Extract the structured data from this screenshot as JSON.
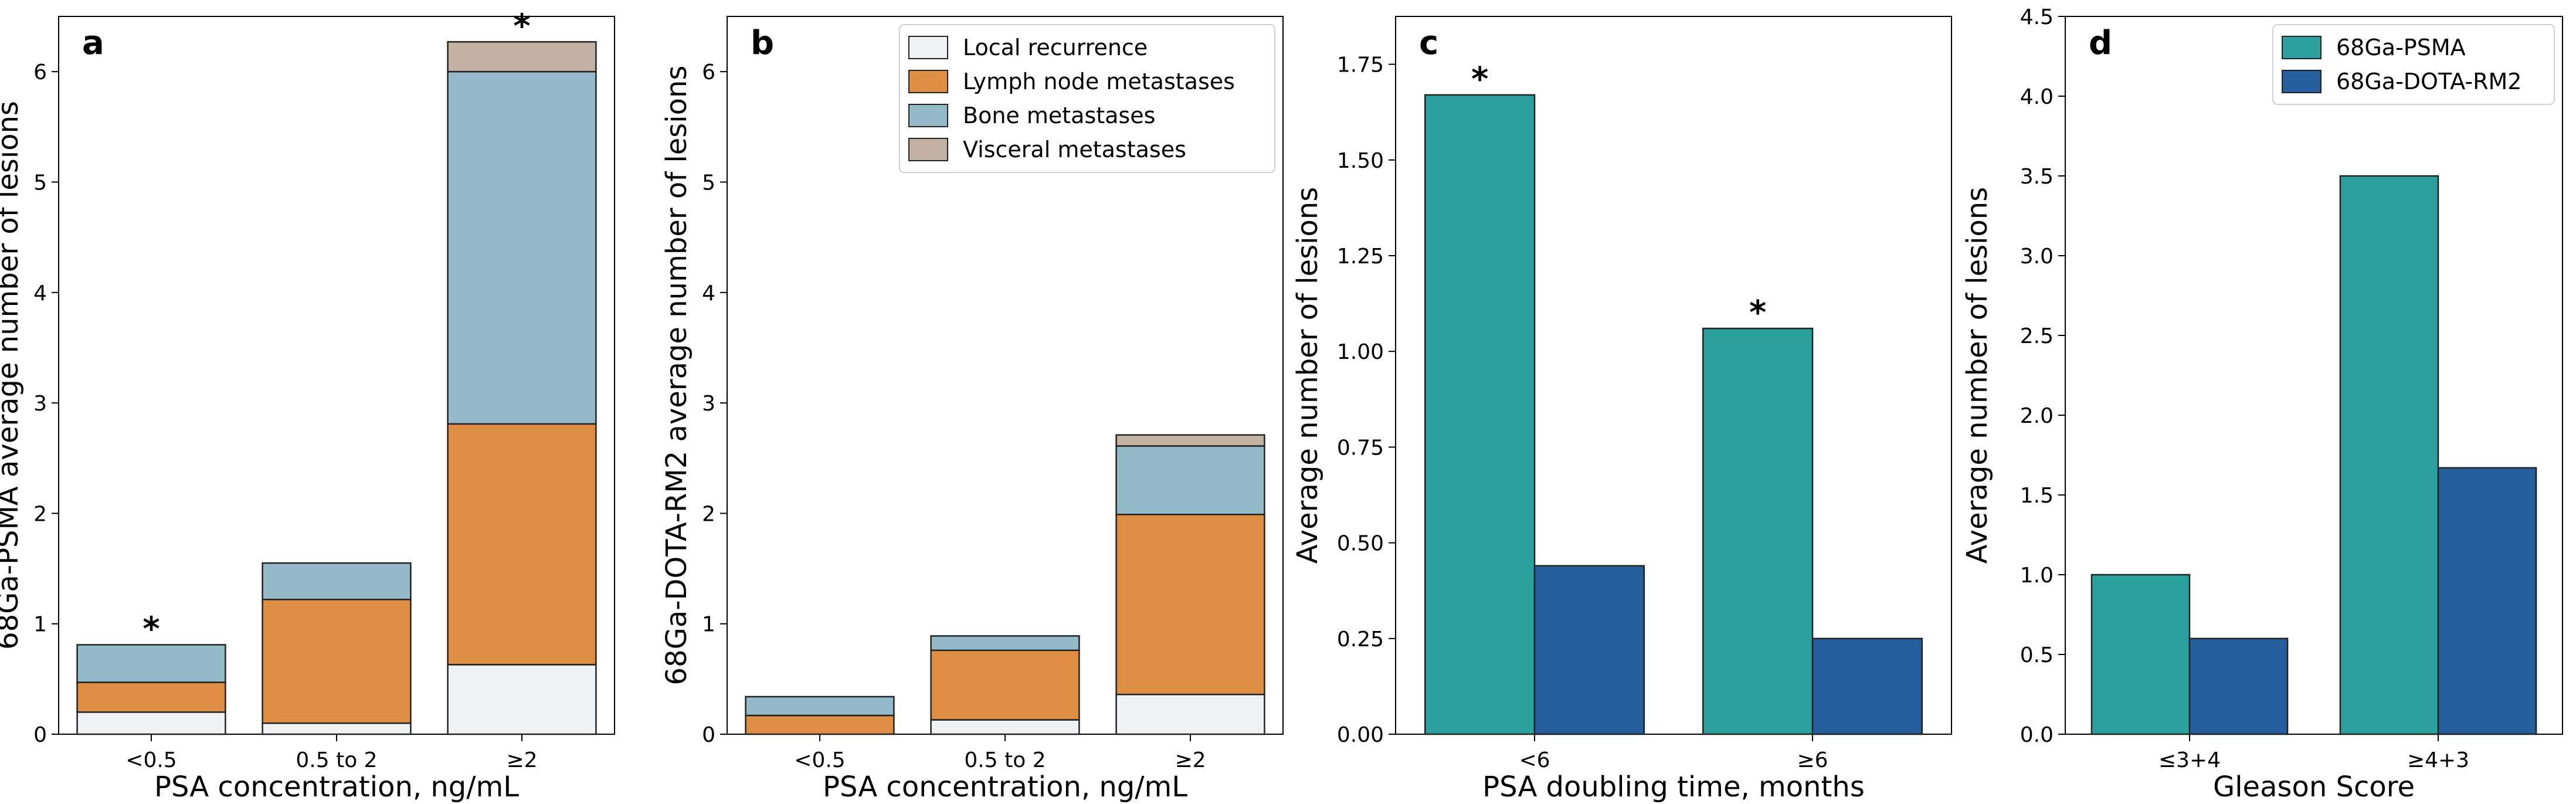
{
  "chart_data": [
    {
      "type": "bar",
      "stacked": true,
      "panel_label": "a",
      "categories": [
        "<0.5",
        "0.5 to 2",
        "≥2"
      ],
      "series": [
        {
          "name": "Local recurrence",
          "color": "#eef2f5",
          "values": [
            0.2,
            0.1,
            0.63
          ]
        },
        {
          "name": "Lymph node metastases",
          "color": "#de8f44",
          "values": [
            0.27,
            1.12,
            2.18
          ]
        },
        {
          "name": "Bone metastases",
          "color": "#94bac9",
          "values": [
            0.34,
            0.33,
            3.19
          ]
        },
        {
          "name": "Visceral metastases",
          "color": "#c2b2a2",
          "values": [
            0,
            0,
            0.27
          ]
        }
      ],
      "annotations": [
        "*",
        "",
        "*"
      ],
      "xlabel": "PSA concentration, ng/mL",
      "ylabel": "68Ga-PSMA average number of lesions",
      "ylim": [
        0,
        6.5
      ],
      "yticks": [
        0,
        1,
        2,
        3,
        4,
        5,
        6
      ],
      "ytick_labels": [
        "0",
        "1",
        "2",
        "3",
        "4",
        "5",
        "6"
      ],
      "legend": null
    },
    {
      "type": "bar",
      "stacked": true,
      "panel_label": "b",
      "categories": [
        "<0.5",
        "0.5 to 2",
        "≥2"
      ],
      "series": [
        {
          "name": "Local recurrence",
          "color": "#eef2f5",
          "values": [
            0.0,
            0.13,
            0.36
          ]
        },
        {
          "name": "Lymph node metastases",
          "color": "#de8f44",
          "values": [
            0.17,
            0.63,
            1.63
          ]
        },
        {
          "name": "Bone metastases",
          "color": "#94bac9",
          "values": [
            0.17,
            0.13,
            0.62
          ]
        },
        {
          "name": "Visceral metastases",
          "color": "#c2b2a2",
          "values": [
            0,
            0,
            0.1
          ]
        }
      ],
      "annotations": [
        "",
        "",
        ""
      ],
      "xlabel": "PSA concentration, ng/mL",
      "ylabel": "68Ga-DOTA-RM2 average number of lesions",
      "ylim": [
        0,
        6.5
      ],
      "yticks": [
        0,
        1,
        2,
        3,
        4,
        5,
        6
      ],
      "ytick_labels": [
        "0",
        "1",
        "2",
        "3",
        "4",
        "5",
        "6"
      ],
      "legend": "top-right"
    },
    {
      "type": "bar",
      "stacked": false,
      "panel_label": "c",
      "categories": [
        "<6",
        "≥6"
      ],
      "series": [
        {
          "name": "68Ga-PSMA",
          "color": "#2ca09c",
          "values": [
            1.67,
            1.06
          ],
          "annotations": [
            "*",
            "*"
          ]
        },
        {
          "name": "68Ga-DOTA-RM2",
          "color": "#255e9c",
          "values": [
            0.44,
            0.25
          ],
          "annotations": [
            "",
            ""
          ]
        }
      ],
      "xlabel": "PSA doubling time, months",
      "ylabel": "Average number of lesions",
      "ylim": [
        0,
        1.875
      ],
      "yticks": [
        0,
        0.25,
        0.5,
        0.75,
        1.0,
        1.25,
        1.5,
        1.75
      ],
      "ytick_labels": [
        "0.00",
        "0.25",
        "0.50",
        "0.75",
        "1.00",
        "1.25",
        "1.50",
        "1.75"
      ],
      "legend": null
    },
    {
      "type": "bar",
      "stacked": false,
      "panel_label": "d",
      "categories": [
        "≤3+4",
        "≥4+3"
      ],
      "series": [
        {
          "name": "68Ga-PSMA",
          "color": "#2ca09c",
          "values": [
            1.0,
            3.5
          ]
        },
        {
          "name": "68Ga-DOTA-RM2",
          "color": "#255e9c",
          "values": [
            0.6,
            1.67
          ]
        }
      ],
      "xlabel": "Gleason Score",
      "ylabel": "Average number of lesions",
      "ylim": [
        0,
        4.5
      ],
      "yticks": [
        0,
        0.5,
        1.0,
        1.5,
        2.0,
        2.5,
        3.0,
        3.5,
        4.0,
        4.5
      ],
      "ytick_labels": [
        "0.0",
        "0.5",
        "1.0",
        "1.5",
        "2.0",
        "2.5",
        "3.0",
        "3.5",
        "4.0",
        "4.5"
      ],
      "legend": "top-right"
    }
  ]
}
